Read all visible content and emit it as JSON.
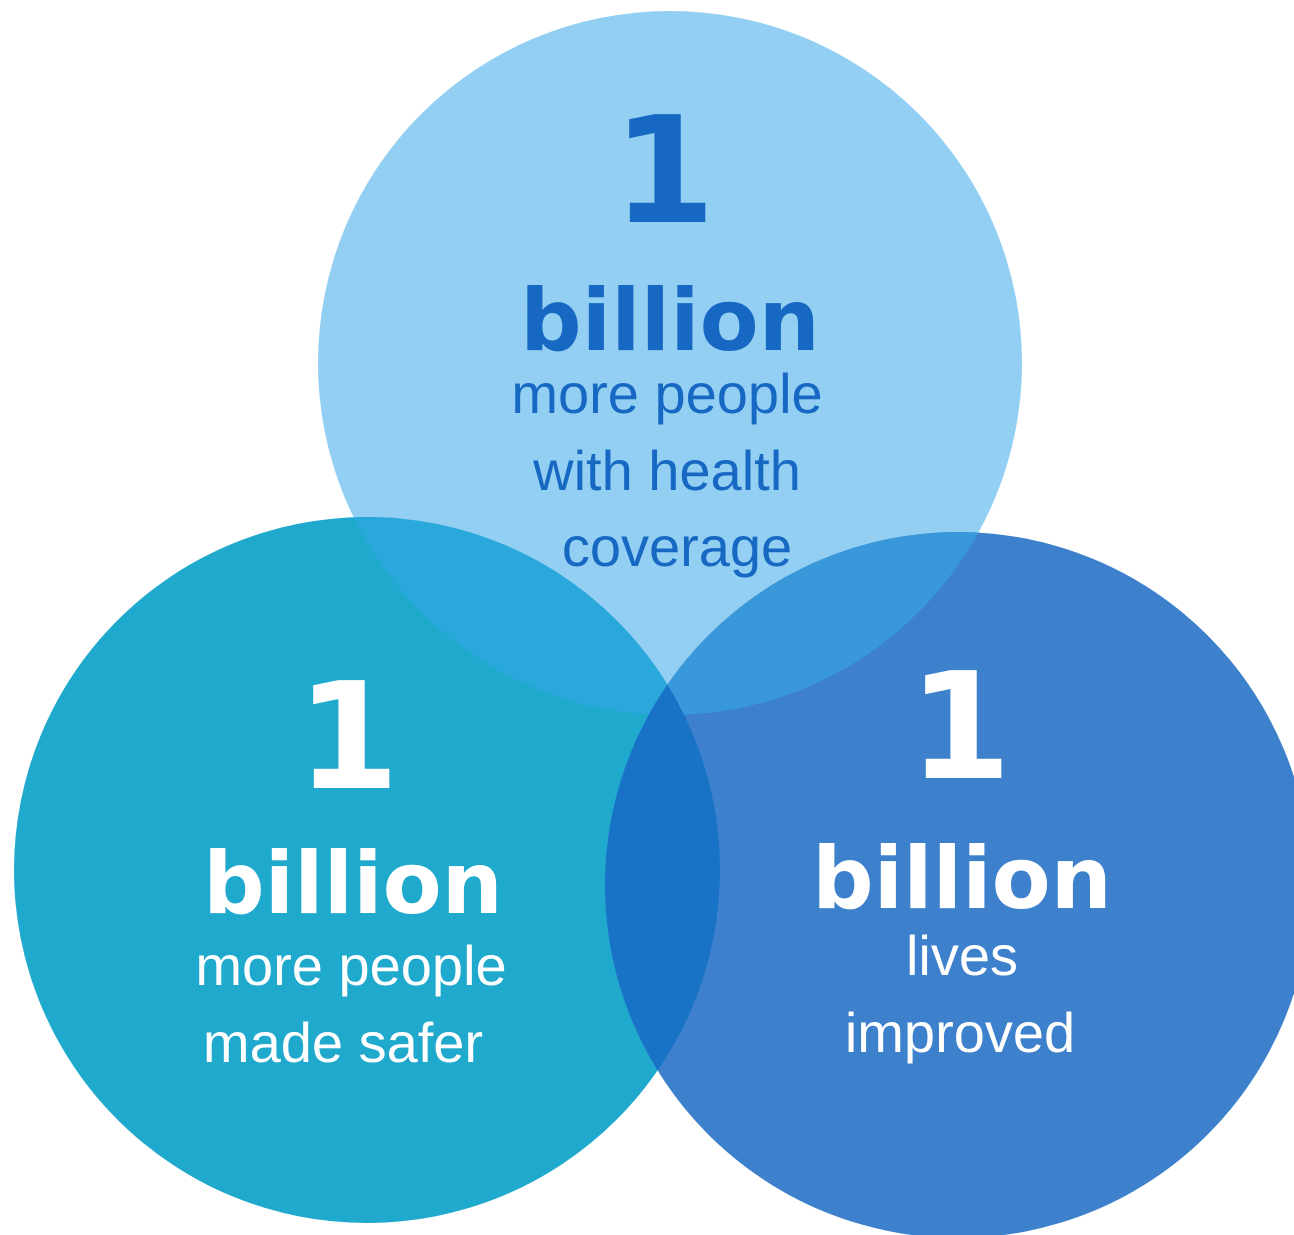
{
  "colors": {
    "background": "#ffffff",
    "circle_top": "#93cff2",
    "circle_left": "#1fa9cd",
    "circle_right": "#3d80cc",
    "text_top": "#1668c2",
    "text_light": "#ffffff"
  },
  "circles": {
    "top": {
      "number": "1",
      "unit": "billion",
      "lines": [
        "more people",
        "with health",
        "coverage"
      ]
    },
    "left": {
      "number": "1",
      "unit": "billion",
      "lines": [
        "more people",
        "made safer"
      ]
    },
    "right": {
      "number": "1",
      "unit": "billion",
      "lines": [
        "lives",
        "improved"
      ]
    }
  }
}
